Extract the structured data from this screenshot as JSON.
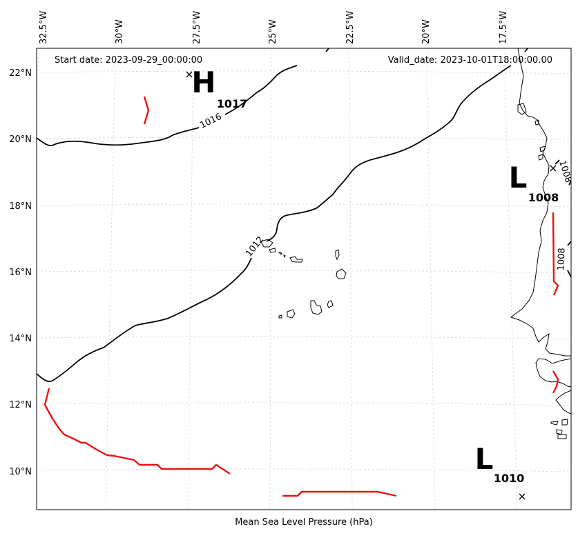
{
  "header": {
    "start_date": "Start date: 2023-09-29_00:00:00",
    "valid_date": "Valid_date: 2023-10-01T18:00:00.00"
  },
  "footer": {
    "xlabel": "Mean Sea Level Pressure (hPa)"
  },
  "lon_labels": [
    "32.5°W",
    "30°W",
    "27.5°W",
    "25°W",
    "22.5°W",
    "20°W",
    "17.5°W"
  ],
  "lat_labels": [
    "22°N",
    "20°N",
    "18°N",
    "16°N",
    "14°N",
    "12°N",
    "10°N"
  ],
  "pressure_centers": [
    {
      "type": "H",
      "value": "1017"
    },
    {
      "type": "L",
      "value": "1008"
    },
    {
      "type": "L",
      "value": "1010"
    }
  ],
  "isobar_labels": [
    "1016",
    "1012",
    "1008",
    "1008"
  ],
  "colors": {
    "isobar": "#000000",
    "front": "#ee1111",
    "grid": "#d6d6d6",
    "frame": "#000000"
  }
}
